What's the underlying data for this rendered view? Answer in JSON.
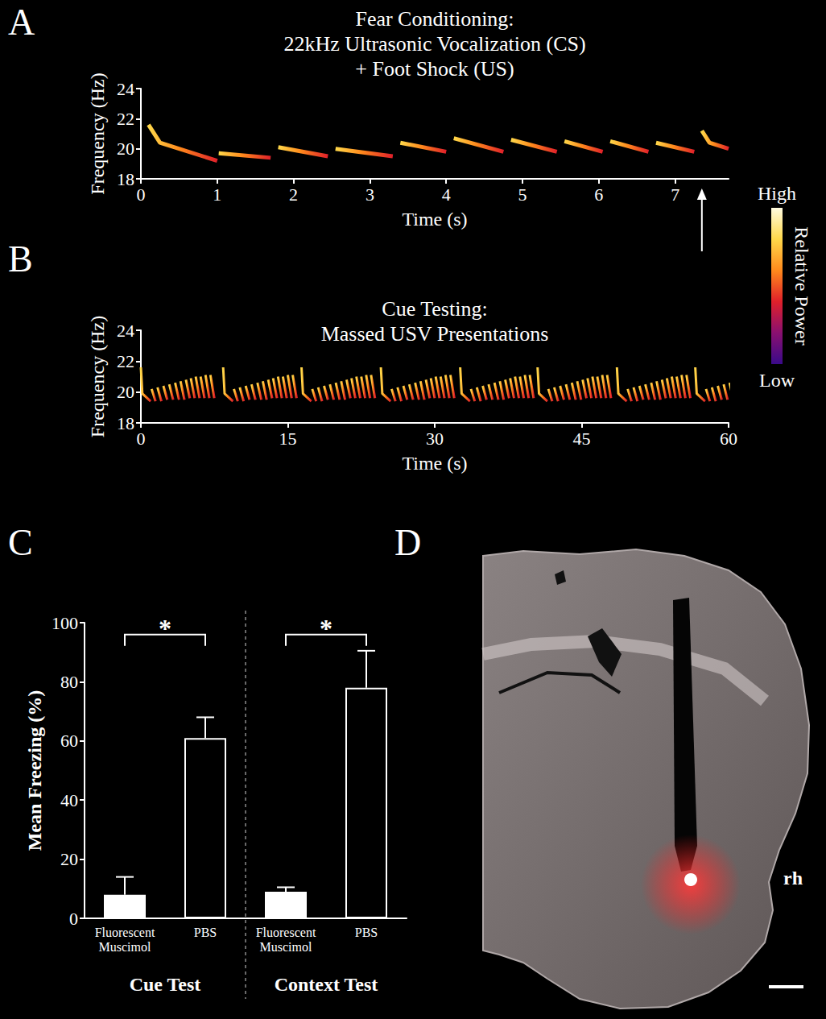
{
  "chart_data": [
    {
      "panel": "A",
      "type": "spectrogram",
      "title": [
        "Fear Conditioning:",
        "22kHz Ultrasonic Vocalization (CS)",
        "+ Foot Shock (US)"
      ],
      "xlabel": "Time (s)",
      "ylabel": "Frequency (Hz)",
      "xlim": [
        0,
        7.7
      ],
      "xticks": [
        0,
        1,
        2,
        3,
        4,
        5,
        6,
        7
      ],
      "ylim": [
        18,
        24
      ],
      "yticks": [
        18,
        20,
        22,
        24
      ],
      "calls": [
        [
          [
            0.1,
            21.6
          ],
          [
            0.25,
            20.4
          ],
          [
            1.0,
            19.2
          ]
        ],
        [
          [
            1.02,
            19.7
          ],
          [
            1.7,
            19.4
          ]
        ],
        [
          [
            1.8,
            20.1
          ],
          [
            2.45,
            19.5
          ]
        ],
        [
          [
            2.55,
            20.0
          ],
          [
            3.3,
            19.5
          ]
        ],
        [
          [
            3.4,
            20.4
          ],
          [
            4.0,
            19.8
          ]
        ],
        [
          [
            4.1,
            20.7
          ],
          [
            4.75,
            19.8
          ]
        ],
        [
          [
            4.85,
            20.6
          ],
          [
            5.45,
            19.8
          ]
        ],
        [
          [
            5.55,
            20.5
          ],
          [
            6.05,
            19.8
          ]
        ],
        [
          [
            6.15,
            20.5
          ],
          [
            6.65,
            19.8
          ]
        ],
        [
          [
            6.75,
            20.4
          ],
          [
            7.25,
            19.8
          ]
        ],
        [
          [
            7.35,
            21.2
          ],
          [
            7.45,
            20.4
          ],
          [
            7.7,
            20.0
          ]
        ]
      ],
      "arrow_x": 7.35,
      "colorbar": {
        "title": "Relative Power",
        "labels": [
          "High",
          "Low"
        ],
        "colors": [
          "#fffce0",
          "#ffd84a",
          "#ff8a1c",
          "#e0202a",
          "#8a1070",
          "#3a0a8a"
        ]
      }
    },
    {
      "panel": "B",
      "type": "spectrogram",
      "title": [
        "Cue Testing:",
        "Massed USV Presentations"
      ],
      "xlabel": "Time (s)",
      "ylabel": "Frequency (Hz)",
      "xlim": [
        0,
        60
      ],
      "xticks": [
        0,
        15,
        30,
        45,
        60
      ],
      "ylim": [
        18,
        24
      ],
      "yticks": [
        18,
        20,
        22,
        24
      ],
      "onsets": [
        0,
        8.4,
        16.4,
        24.5,
        32.6,
        40.5,
        48.6,
        56.6
      ],
      "calls": [
        [
          [
            0,
            21.6
          ],
          [
            0.15,
            19.9
          ],
          [
            1.0,
            19.4
          ]
        ],
        [
          [
            1.1,
            20.2
          ],
          [
            1.5,
            19.4
          ]
        ],
        [
          [
            1.7,
            20.3
          ],
          [
            2.1,
            19.4
          ]
        ],
        [
          [
            2.3,
            20.4
          ],
          [
            2.7,
            19.5
          ]
        ],
        [
          [
            2.9,
            20.5
          ],
          [
            3.3,
            19.5
          ]
        ],
        [
          [
            3.5,
            20.6
          ],
          [
            3.9,
            19.5
          ]
        ],
        [
          [
            4.05,
            20.7
          ],
          [
            4.45,
            19.5
          ]
        ],
        [
          [
            4.6,
            20.8
          ],
          [
            5.0,
            19.6
          ]
        ],
        [
          [
            5.1,
            20.9
          ],
          [
            5.5,
            19.6
          ]
        ],
        [
          [
            5.6,
            21.0
          ],
          [
            6.0,
            19.6
          ]
        ],
        [
          [
            6.1,
            21.0
          ],
          [
            6.5,
            19.6
          ]
        ],
        [
          [
            6.6,
            21.1
          ],
          [
            7.0,
            19.6
          ]
        ],
        [
          [
            7.1,
            21.1
          ],
          [
            7.5,
            19.6
          ]
        ]
      ]
    },
    {
      "panel": "C",
      "type": "bar",
      "ylabel": "Mean Freezing (%)",
      "ylim": [
        0,
        100
      ],
      "yticks": [
        0,
        20,
        40,
        60,
        80,
        100
      ],
      "categories": [
        "Fluorescent Muscimol",
        "PBS",
        "Fluorescent Muscimol",
        "PBS"
      ],
      "groups": [
        "Cue Test",
        "Context Test"
      ],
      "values": [
        8,
        61,
        9,
        78
      ],
      "errors": [
        6,
        7,
        1.5,
        12.5
      ],
      "colors": [
        "#ffffff",
        "#000000",
        "#ffffff",
        "#000000"
      ],
      "significance": [
        {
          "from": 0,
          "to": 1,
          "y": 96,
          "label": "*"
        },
        {
          "from": 2,
          "to": 3,
          "y": 96,
          "label": "*"
        }
      ]
    },
    {
      "panel": "D",
      "type": "image",
      "annotations": [
        "rh"
      ]
    }
  ]
}
